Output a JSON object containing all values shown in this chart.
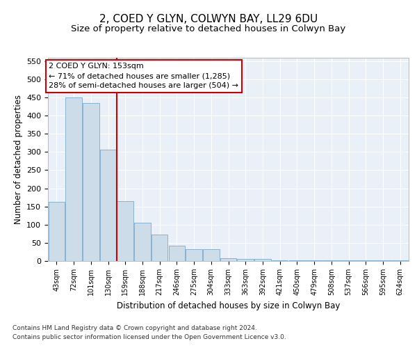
{
  "title": "2, COED Y GLYN, COLWYN BAY, LL29 6DU",
  "subtitle": "Size of property relative to detached houses in Colwyn Bay",
  "xlabel": "Distribution of detached houses by size in Colwyn Bay",
  "ylabel": "Number of detached properties",
  "categories": [
    "43sqm",
    "72sqm",
    "101sqm",
    "130sqm",
    "159sqm",
    "188sqm",
    "217sqm",
    "246sqm",
    "275sqm",
    "304sqm",
    "333sqm",
    "363sqm",
    "392sqm",
    "421sqm",
    "450sqm",
    "479sqm",
    "508sqm",
    "537sqm",
    "566sqm",
    "595sqm",
    "624sqm"
  ],
  "values": [
    162,
    450,
    435,
    306,
    165,
    106,
    73,
    43,
    33,
    33,
    8,
    5,
    5,
    2,
    1,
    1,
    1,
    1,
    1,
    1,
    1
  ],
  "bar_color": "#ccdce8",
  "bar_edge_color": "#7aaacc",
  "vline_x": 3.5,
  "vline_color": "#cc0000",
  "annotation_text": "2 COED Y GLYN: 153sqm\n← 71% of detached houses are smaller (1,285)\n28% of semi-detached houses are larger (504) →",
  "annotation_box_color": "#ffffff",
  "annotation_box_edge": "#cc0000",
  "ylim": [
    0,
    560
  ],
  "yticks": [
    0,
    50,
    100,
    150,
    200,
    250,
    300,
    350,
    400,
    450,
    500,
    550
  ],
  "background_color": "#eaf0f8",
  "footer_line1": "Contains HM Land Registry data © Crown copyright and database right 2024.",
  "footer_line2": "Contains public sector information licensed under the Open Government Licence v3.0.",
  "title_fontsize": 11,
  "subtitle_fontsize": 9.5,
  "xlabel_fontsize": 8.5,
  "ylabel_fontsize": 8.5,
  "tick_fontsize": 8,
  "xtick_fontsize": 7,
  "footer_fontsize": 6.5,
  "annot_fontsize": 8
}
